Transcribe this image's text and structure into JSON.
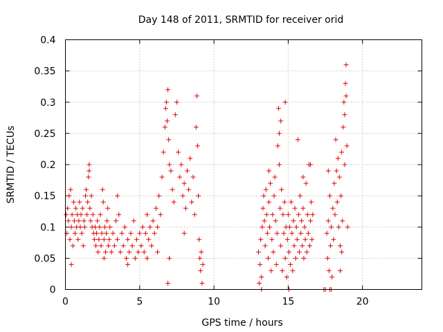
{
  "chart_data": {
    "type": "scatter",
    "title": "Day 148 of 2011, SRMTID for receiver orid",
    "xlabel": "GPS time / hours",
    "ylabel": "SRMTID / TECUs",
    "xlim": [
      0,
      24
    ],
    "ylim": [
      0,
      0.4
    ],
    "x_ticks": [
      0,
      5,
      10,
      15,
      20
    ],
    "x_tick_labels": [
      "0",
      "5",
      "10",
      "15",
      "20"
    ],
    "y_ticks": [
      0,
      0.05,
      0.1,
      0.15,
      0.2,
      0.25,
      0.3,
      0.35,
      0.4
    ],
    "y_tick_labels": [
      "0",
      "0.05",
      "0.1",
      "0.15",
      "0.2",
      "0.25",
      "0.3",
      "0.35",
      "0.4"
    ],
    "grid": true,
    "marker": "+",
    "color": "#e00000",
    "series": [
      {
        "name": "SRMTID",
        "points": [
          [
            0.05,
            0.12
          ],
          [
            0.1,
            0.09
          ],
          [
            0.15,
            0.13
          ],
          [
            0.2,
            0.11
          ],
          [
            0.25,
            0.15
          ],
          [
            0.3,
            0.08
          ],
          [
            0.35,
            0.16
          ],
          [
            0.4,
            0.1
          ],
          [
            0.45,
            0.12
          ],
          [
            0.5,
            0.07
          ],
          [
            0.55,
            0.14
          ],
          [
            0.6,
            0.11
          ],
          [
            0.65,
            0.09
          ],
          [
            0.7,
            0.13
          ],
          [
            0.75,
            0.1
          ],
          [
            0.8,
            0.12
          ],
          [
            0.85,
            0.08
          ],
          [
            0.9,
            0.11
          ],
          [
            0.95,
            0.14
          ],
          [
            1.0,
            0.1
          ],
          [
            1.05,
            0.12
          ],
          [
            1.1,
            0.09
          ],
          [
            1.15,
            0.13
          ],
          [
            1.2,
            0.07
          ],
          [
            1.25,
            0.11
          ],
          [
            1.3,
            0.1
          ],
          [
            1.35,
            0.15
          ],
          [
            1.4,
            0.16
          ],
          [
            1.45,
            0.12
          ],
          [
            1.5,
            0.14
          ],
          [
            1.55,
            0.18
          ],
          [
            1.6,
            0.19
          ],
          [
            1.65,
            0.13
          ],
          [
            1.7,
            0.11
          ],
          [
            1.75,
            0.15
          ],
          [
            1.8,
            0.1
          ],
          [
            1.85,
            0.12
          ],
          [
            1.9,
            0.09
          ],
          [
            1.95,
            0.08
          ],
          [
            2.0,
            0.1
          ],
          [
            2.05,
            0.07
          ],
          [
            2.1,
            0.09
          ],
          [
            2.15,
            0.11
          ],
          [
            2.2,
            0.06
          ],
          [
            2.25,
            0.08
          ],
          [
            2.3,
            0.1
          ],
          [
            2.35,
            0.12
          ],
          [
            2.4,
            0.07
          ],
          [
            2.45,
            0.09
          ],
          [
            2.5,
            0.16
          ],
          [
            2.55,
            0.14
          ],
          [
            2.6,
            0.08
          ],
          [
            2.65,
            0.1
          ],
          [
            2.7,
            0.06
          ],
          [
            2.75,
            0.09
          ],
          [
            2.8,
            0.11
          ],
          [
            2.85,
            0.13
          ],
          [
            2.9,
            0.07
          ],
          [
            2.95,
            0.08
          ],
          [
            3.0,
            0.1
          ],
          [
            3.1,
            0.06
          ],
          [
            3.2,
            0.09
          ],
          [
            3.3,
            0.07
          ],
          [
            3.4,
            0.11
          ],
          [
            3.5,
            0.08
          ],
          [
            3.6,
            0.12
          ],
          [
            3.7,
            0.06
          ],
          [
            3.8,
            0.09
          ],
          [
            3.9,
            0.07
          ],
          [
            4.0,
            0.1
          ],
          [
            4.1,
            0.05
          ],
          [
            4.2,
            0.08
          ],
          [
            4.3,
            0.06
          ],
          [
            4.4,
            0.09
          ],
          [
            4.5,
            0.07
          ],
          [
            4.6,
            0.11
          ],
          [
            4.7,
            0.05
          ],
          [
            4.8,
            0.08
          ],
          [
            4.9,
            0.06
          ],
          [
            5.0,
            0.09
          ],
          [
            5.1,
            0.07
          ],
          [
            5.2,
            0.1
          ],
          [
            5.3,
            0.06
          ],
          [
            5.4,
            0.09
          ],
          [
            5.5,
            0.12
          ],
          [
            5.6,
            0.08
          ],
          [
            5.7,
            0.1
          ],
          [
            5.8,
            0.07
          ],
          [
            5.9,
            0.11
          ],
          [
            6.0,
            0.09
          ],
          [
            6.1,
            0.13
          ],
          [
            6.2,
            0.1
          ],
          [
            6.3,
            0.15
          ],
          [
            6.4,
            0.12
          ],
          [
            6.5,
            0.18
          ],
          [
            6.6,
            0.22
          ],
          [
            6.7,
            0.26
          ],
          [
            6.75,
            0.29
          ],
          [
            6.8,
            0.3
          ],
          [
            6.85,
            0.27
          ],
          [
            6.9,
            0.32
          ],
          [
            6.95,
            0.24
          ],
          [
            7.0,
            0.2
          ],
          [
            7.1,
            0.19
          ],
          [
            7.2,
            0.16
          ],
          [
            7.3,
            0.14
          ],
          [
            7.4,
            0.28
          ],
          [
            7.5,
            0.3
          ],
          [
            7.6,
            0.22
          ],
          [
            7.7,
            0.18
          ],
          [
            7.8,
            0.2
          ],
          [
            7.9,
            0.15
          ],
          [
            8.0,
            0.17
          ],
          [
            8.1,
            0.13
          ],
          [
            8.2,
            0.19
          ],
          [
            8.3,
            0.16
          ],
          [
            8.4,
            0.21
          ],
          [
            8.5,
            0.14
          ],
          [
            8.6,
            0.18
          ],
          [
            8.7,
            0.12
          ],
          [
            8.8,
            0.26
          ],
          [
            8.85,
            0.31
          ],
          [
            8.9,
            0.23
          ],
          [
            8.95,
            0.15
          ],
          [
            9.0,
            0.08
          ],
          [
            9.05,
            0.05
          ],
          [
            9.1,
            0.03
          ],
          [
            9.15,
            0.06
          ],
          [
            9.2,
            0.01
          ],
          [
            9.25,
            0.04
          ],
          [
            6.9,
            0.01
          ],
          [
            4.2,
            0.04
          ],
          [
            0.4,
            0.04
          ],
          [
            1.6,
            0.2
          ],
          [
            2.6,
            0.05
          ],
          [
            3.5,
            0.15
          ],
          [
            5.5,
            0.05
          ],
          [
            6.2,
            0.06
          ],
          [
            7.0,
            0.05
          ],
          [
            8.0,
            0.09
          ],
          [
            13.0,
            0.06
          ],
          [
            13.05,
            0.01
          ],
          [
            13.1,
            0.04
          ],
          [
            13.15,
            0.08
          ],
          [
            13.2,
            0.02
          ],
          [
            13.25,
            0.1
          ],
          [
            13.3,
            0.13
          ],
          [
            13.35,
            0.15
          ],
          [
            13.4,
            0.11
          ],
          [
            13.45,
            0.07
          ],
          [
            13.5,
            0.16
          ],
          [
            13.55,
            0.12
          ],
          [
            13.6,
            0.09
          ],
          [
            13.65,
            0.05
          ],
          [
            13.7,
            0.14
          ],
          [
            13.75,
            0.1
          ],
          [
            13.8,
            0.17
          ],
          [
            13.85,
            0.03
          ],
          [
            13.9,
            0.08
          ],
          [
            13.95,
            0.12
          ],
          [
            14.0,
            0.06
          ],
          [
            14.05,
            0.15
          ],
          [
            14.1,
            0.18
          ],
          [
            14.15,
            0.11
          ],
          [
            14.2,
            0.04
          ],
          [
            14.25,
            0.09
          ],
          [
            14.3,
            0.23
          ],
          [
            14.35,
            0.29
          ],
          [
            14.4,
            0.2
          ],
          [
            14.45,
            0.13
          ],
          [
            14.5,
            0.07
          ],
          [
            14.55,
            0.16
          ],
          [
            14.6,
            0.03
          ],
          [
            14.65,
            0.12
          ],
          [
            14.7,
            0.09
          ],
          [
            14.75,
            0.14
          ],
          [
            14.8,
            0.05
          ],
          [
            14.85,
            0.1
          ],
          [
            14.9,
            0.02
          ],
          [
            14.95,
            0.08
          ],
          [
            15.0,
            0.12
          ],
          [
            15.05,
            0.06
          ],
          [
            15.1,
            0.1
          ],
          [
            15.15,
            0.04
          ],
          [
            15.2,
            0.14
          ],
          [
            15.25,
            0.09
          ],
          [
            15.3,
            0.03
          ],
          [
            15.35,
            0.11
          ],
          [
            15.4,
            0.07
          ],
          [
            15.45,
            0.13
          ],
          [
            15.5,
            0.05
          ],
          [
            15.55,
            0.1
          ],
          [
            15.6,
            0.08
          ],
          [
            15.65,
            0.24
          ],
          [
            15.7,
            0.12
          ],
          [
            15.75,
            0.06
          ],
          [
            15.8,
            0.15
          ],
          [
            15.85,
            0.09
          ],
          [
            15.9,
            0.11
          ],
          [
            15.95,
            0.07
          ],
          [
            16.0,
            0.13
          ],
          [
            16.05,
            0.05
          ],
          [
            16.1,
            0.1
          ],
          [
            16.15,
            0.08
          ],
          [
            16.2,
            0.17
          ],
          [
            16.25,
            0.06
          ],
          [
            16.3,
            0.12
          ],
          [
            16.35,
            0.09
          ],
          [
            16.4,
            0.2
          ],
          [
            16.45,
            0.07
          ],
          [
            16.5,
            0.11
          ],
          [
            16.55,
            0.14
          ],
          [
            16.6,
            0.08
          ],
          [
            16.65,
            0.12
          ],
          [
            17.6,
            0.09
          ],
          [
            17.65,
            0.05
          ],
          [
            17.7,
            0.11
          ],
          [
            17.75,
            0.03
          ],
          [
            17.8,
            0.15
          ],
          [
            17.85,
            0.07
          ],
          [
            17.9,
            0.1
          ],
          [
            17.95,
            0.02
          ],
          [
            18.0,
            0.13
          ],
          [
            18.05,
            0.08
          ],
          [
            18.1,
            0.17
          ],
          [
            18.15,
            0.12
          ],
          [
            18.2,
            0.24
          ],
          [
            18.25,
            0.19
          ],
          [
            18.3,
            0.14
          ],
          [
            18.35,
            0.21
          ],
          [
            18.4,
            0.1
          ],
          [
            18.45,
            0.18
          ],
          [
            18.5,
            0.07
          ],
          [
            18.55,
            0.15
          ],
          [
            18.6,
            0.22
          ],
          [
            18.65,
            0.11
          ],
          [
            18.7,
            0.26
          ],
          [
            18.75,
            0.3
          ],
          [
            18.8,
            0.2
          ],
          [
            18.85,
            0.33
          ],
          [
            18.9,
            0.36
          ],
          [
            18.95,
            0.23
          ],
          [
            19.0,
            0.1
          ],
          [
            18.6,
            0.06
          ],
          [
            18.5,
            0.03
          ],
          [
            17.5,
            0.0
          ],
          [
            17.4,
            0.0
          ],
          [
            17.8,
            0.0
          ],
          [
            17.9,
            0.0
          ],
          [
            15.05,
            0.0
          ],
          [
            14.8,
            0.3
          ],
          [
            14.5,
            0.27
          ],
          [
            14.4,
            0.25
          ],
          [
            13.7,
            0.19
          ],
          [
            16.0,
            0.18
          ],
          [
            16.5,
            0.2
          ],
          [
            17.7,
            0.19
          ],
          [
            18.8,
            0.28
          ],
          [
            18.9,
            0.31
          ],
          [
            13.2,
            0.0
          ]
        ]
      }
    ]
  }
}
